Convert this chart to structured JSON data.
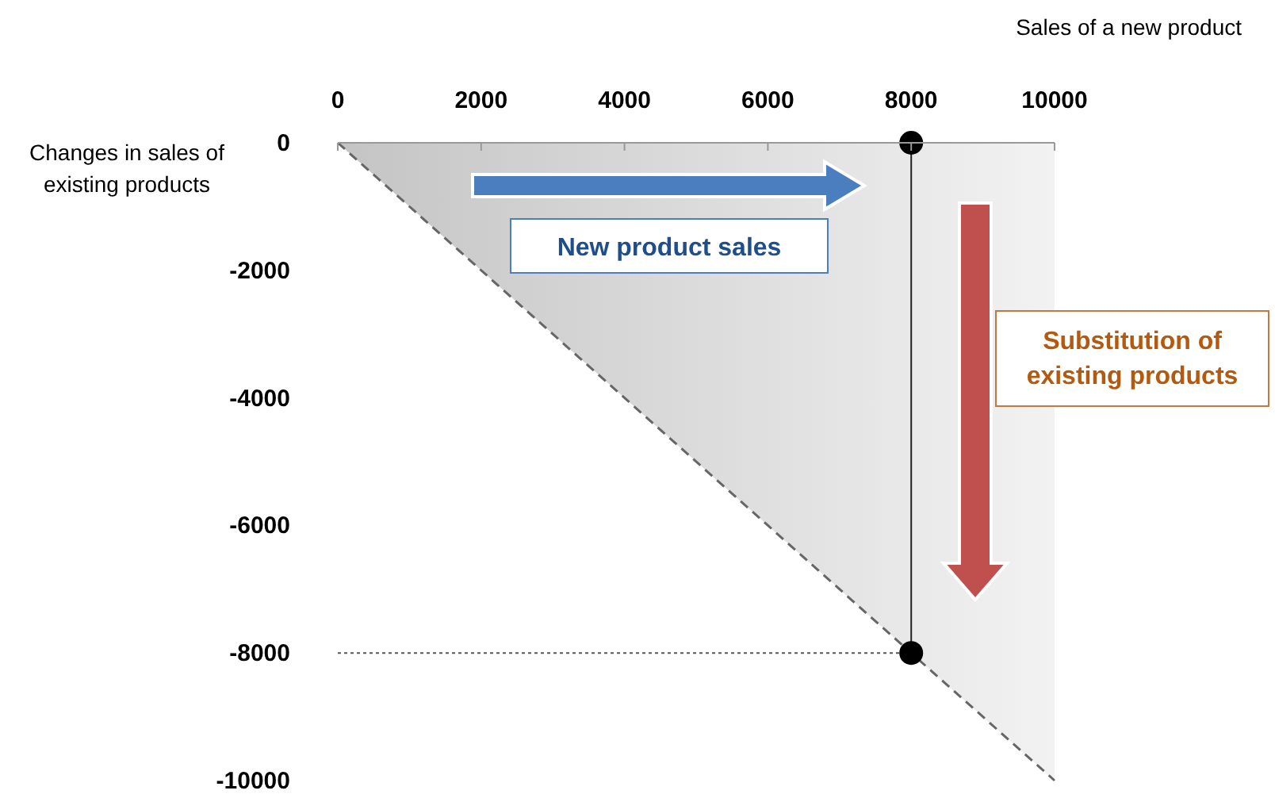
{
  "chart_data": {
    "type": "line",
    "xlabel": "Sales of a new product",
    "ylabel": "Changes in sales of existing products",
    "xlim": [
      0,
      10000
    ],
    "ylim": [
      -10000,
      0
    ],
    "xticks": [
      0,
      2000,
      4000,
      6000,
      8000,
      10000
    ],
    "yticks": [
      0,
      -2000,
      -4000,
      -6000,
      -8000,
      -10000
    ],
    "series": [
      {
        "type": "area",
        "color": "#c4c4c4",
        "x": [
          0,
          10000
        ],
        "values": [
          0,
          -10000
        ],
        "line_style": "dashed"
      },
      {
        "color": "#555555",
        "x": [
          0,
          8000
        ],
        "values": [
          -8000,
          -8000
        ],
        "line_style": "dotted"
      },
      {
        "color": "#222222",
        "x": [
          8000,
          8000
        ],
        "values": [
          0,
          -8000
        ],
        "line_style": "solid"
      },
      {
        "type": "scatter",
        "color": "#000000",
        "x": [
          8000,
          8000
        ],
        "values": [
          0,
          -8000
        ],
        "marker": "circle"
      }
    ],
    "annotations": [
      "New product sales",
      "Substitution of existing products"
    ]
  }
}
